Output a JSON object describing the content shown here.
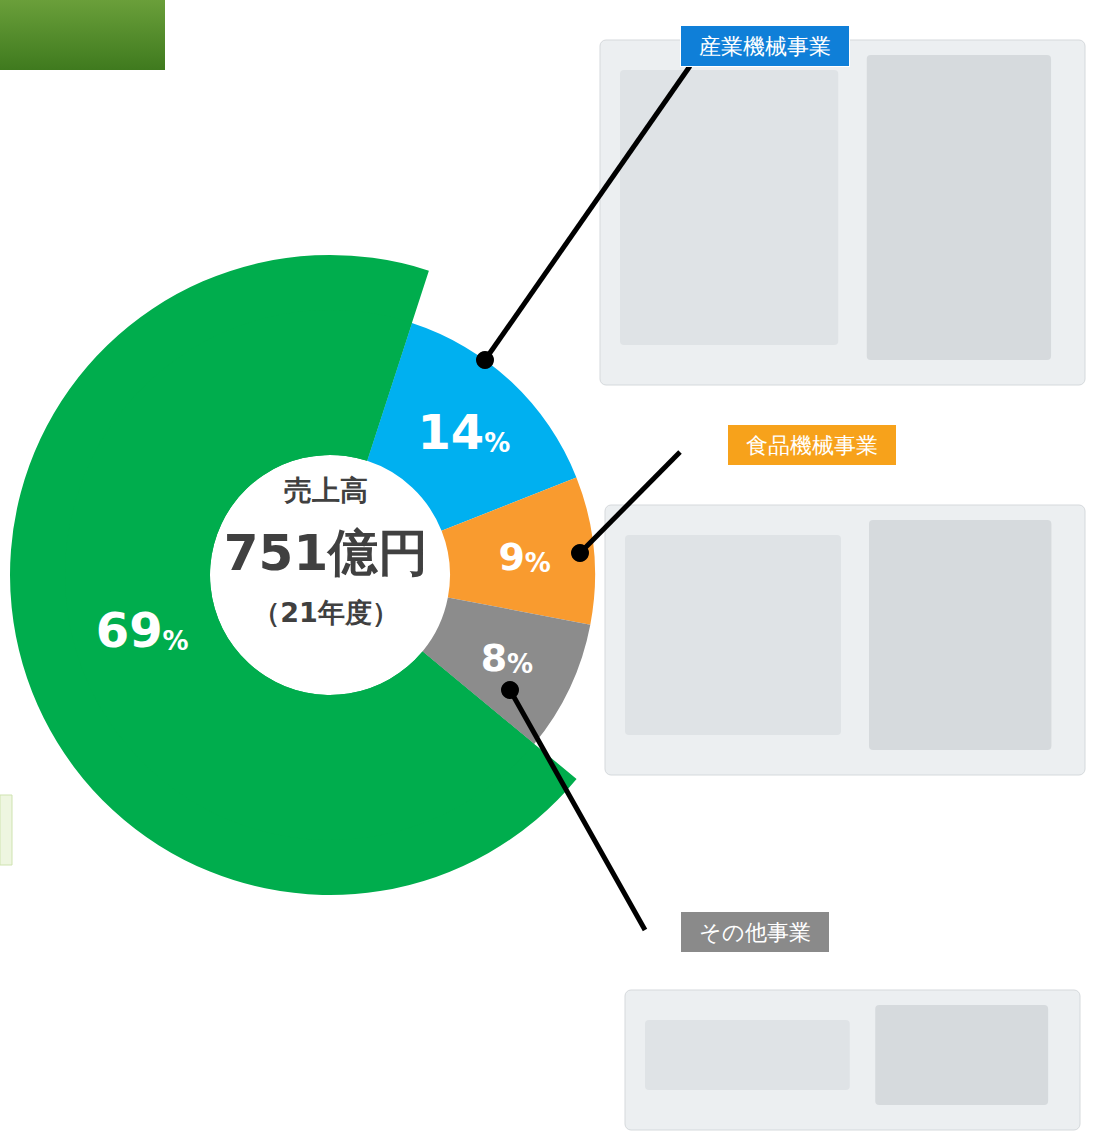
{
  "chart_data": {
    "type": "pie",
    "categories": [
      "産業機械事業",
      "食品機械事業",
      "その他事業",
      null
    ],
    "values": [
      14,
      9,
      8,
      69
    ],
    "value_labels": [
      "14%",
      "9%",
      "8%",
      "69%"
    ],
    "colors": [
      "#00b0f0",
      "#f99b2f",
      "#8c8c8c",
      "#00ad4d"
    ],
    "data_labels": true,
    "annotations": [
      "売上高",
      "751億円",
      "（21年度）"
    ]
  }
}
